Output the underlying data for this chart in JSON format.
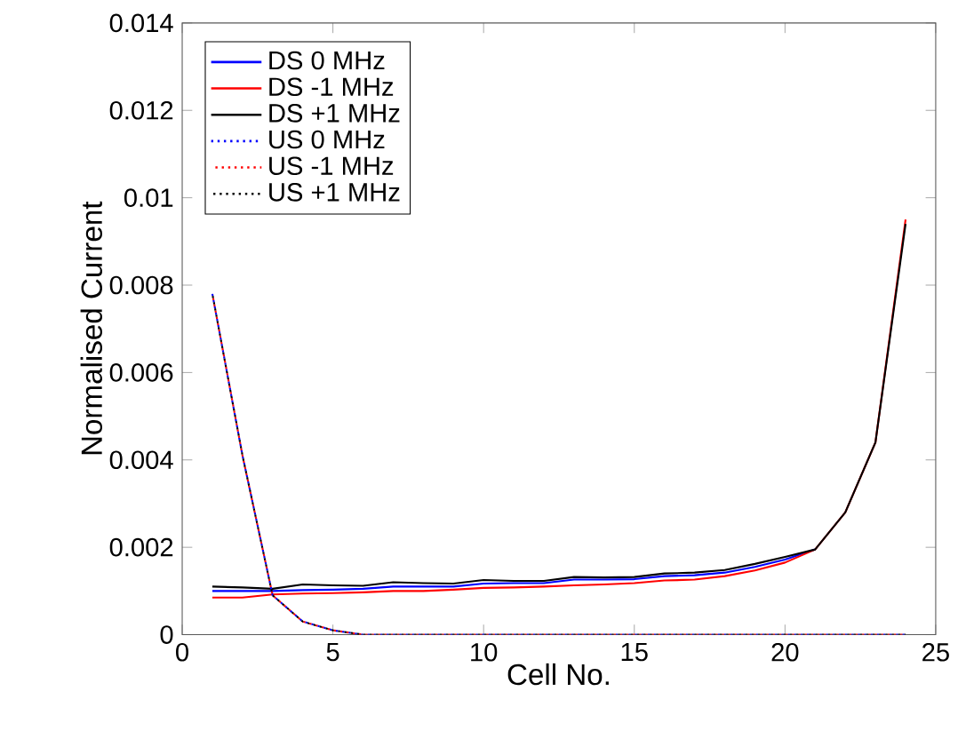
{
  "chart_data": {
    "type": "line",
    "xlabel": "Cell No.",
    "ylabel": "Normalised Current",
    "x": [
      1,
      2,
      3,
      4,
      5,
      6,
      7,
      8,
      9,
      10,
      11,
      12,
      13,
      14,
      15,
      16,
      17,
      18,
      19,
      20,
      21,
      22,
      23,
      24
    ],
    "series": [
      {
        "name": "DS 0 MHz",
        "color": "#0000ff",
        "line_style": "solid",
        "values": [
          0.001,
          0.001,
          0.001,
          0.00102,
          0.00103,
          0.00105,
          0.0011,
          0.0011,
          0.0011,
          0.00117,
          0.00118,
          0.00118,
          0.00126,
          0.00126,
          0.00127,
          0.00134,
          0.00136,
          0.00142,
          0.00155,
          0.00172,
          0.00195,
          null,
          null,
          null
        ]
      },
      {
        "name": "DS -1 MHz",
        "color": "#ff0000",
        "line_style": "solid",
        "values": [
          0.00085,
          0.00085,
          0.00092,
          0.00094,
          0.00095,
          0.00097,
          0.001,
          0.001,
          0.00103,
          0.00107,
          0.00108,
          0.0011,
          0.00113,
          0.00115,
          0.00118,
          0.00124,
          0.00126,
          0.00134,
          0.00147,
          0.00165,
          0.00195,
          0.0028,
          0.0044,
          0.0095
        ]
      },
      {
        "name": "DS +1 MHz",
        "color": "#000000",
        "line_style": "solid",
        "values": [
          0.0011,
          0.00108,
          0.00105,
          0.00115,
          0.00113,
          0.00112,
          0.0012,
          0.00118,
          0.00117,
          0.00125,
          0.00123,
          0.00123,
          0.00132,
          0.00131,
          0.00132,
          0.0014,
          0.00142,
          0.00148,
          0.00162,
          0.00178,
          0.00195,
          0.0028,
          0.0044,
          0.0094
        ]
      },
      {
        "name": "US 0 MHz",
        "color": "#0000ff",
        "line_style": "dotted",
        "values": [
          0.0078,
          0.0041,
          0.0009,
          0.0003,
          0.0001,
          0,
          0,
          0,
          0,
          0,
          0,
          0,
          0,
          0,
          0,
          0,
          0,
          0,
          0,
          0,
          0,
          0,
          0,
          0
        ]
      },
      {
        "name": "US -1 MHz",
        "color": "#ff0000",
        "line_style": "dotted",
        "values": [
          0.0078,
          0.0041,
          0.0009,
          0.0003,
          0.0001,
          0,
          0,
          0,
          0,
          0,
          0,
          0,
          0,
          0,
          0,
          0,
          0,
          0,
          0,
          0,
          0,
          0,
          0,
          0
        ]
      },
      {
        "name": "US +1 MHz",
        "color": "#000000",
        "line_style": "dotted",
        "values": [
          0.0078,
          0.0041,
          0.0009,
          0.0003,
          0.0001,
          0,
          0,
          0,
          0,
          0,
          0,
          0,
          0,
          0,
          0,
          0,
          0,
          0,
          0,
          0,
          0,
          0,
          0,
          0
        ]
      }
    ],
    "xlim": [
      0,
      25
    ],
    "xticks": [
      0,
      5,
      10,
      15,
      20,
      25
    ],
    "ylim": [
      0,
      0.014
    ],
    "yticks": [
      0,
      0.002,
      0.004,
      0.006,
      0.008,
      0.01,
      0.012,
      0.014
    ],
    "legend": "top left"
  }
}
